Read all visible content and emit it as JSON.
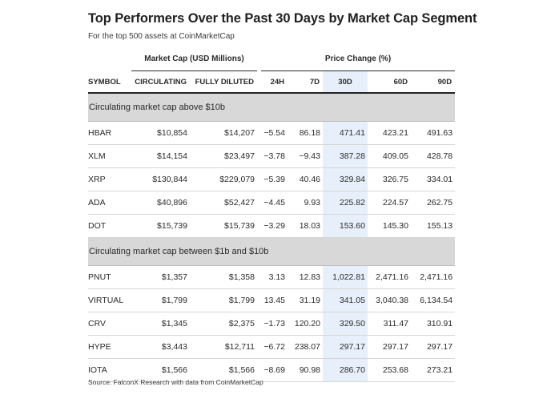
{
  "title": "Top Performers Over the Past 30 Days by Market Cap Segment",
  "subtitle": "For the top 500 assets at CoinMarketCap",
  "source": "Source: FalconX Research with data from CoinMarketCap",
  "colors": {
    "highlight_column": "#e7f0fa",
    "section_band": "#d8d8d8",
    "text": "#2a2a2a"
  },
  "group_headers": {
    "market_cap": "Market Cap (USD Millions)",
    "price_change": "Price Change (%)"
  },
  "columns": [
    "SYMBOL",
    "CIRCULATING",
    "FULLY DILUTED",
    "24H",
    "7D",
    "30D",
    "60D",
    "90D"
  ],
  "chart_data": {
    "type": "table",
    "title": "Top Performers Over the Past 30 Days by Market Cap Segment",
    "highlighted_column": "30D",
    "sections": [
      {
        "label": "Circulating market cap above $10b",
        "rows": [
          [
            "HBAR",
            "$10,854",
            "$14,207",
            "−5.54",
            "86.18",
            "471.41",
            "423.21",
            "491.63"
          ],
          [
            "XLM",
            "$14,154",
            "$23,497",
            "−3.78",
            "−9.43",
            "387.28",
            "409.05",
            "428.78"
          ],
          [
            "XRP",
            "$130,844",
            "$229,079",
            "−5.39",
            "40.46",
            "329.84",
            "326.75",
            "334.01"
          ],
          [
            "ADA",
            "$40,896",
            "$52,427",
            "−4.45",
            "9.93",
            "225.82",
            "224.57",
            "262.75"
          ],
          [
            "DOT",
            "$15,739",
            "$15,739",
            "−3.29",
            "18.03",
            "153.60",
            "145.30",
            "155.13"
          ]
        ]
      },
      {
        "label": "Circulating market cap between $1b and $10b",
        "rows": [
          [
            "PNUT",
            "$1,357",
            "$1,358",
            "3.13",
            "12.83",
            "1,022.81",
            "2,471.16",
            "2,471.16"
          ],
          [
            "VIRTUAL",
            "$1,799",
            "$1,799",
            "13.45",
            "31.19",
            "341.05",
            "3,040.38",
            "6,134.54"
          ],
          [
            "CRV",
            "$1,345",
            "$2,375",
            "−1.73",
            "120.20",
            "329.50",
            "311.47",
            "310.91"
          ],
          [
            "HYPE",
            "$3,443",
            "$12,711",
            "−6.72",
            "238.07",
            "297.17",
            "297.17",
            "297.17"
          ],
          [
            "IOTA",
            "$1,566",
            "$1,566",
            "−8.69",
            "90.98",
            "286.70",
            "253.68",
            "273.21"
          ]
        ]
      }
    ]
  }
}
